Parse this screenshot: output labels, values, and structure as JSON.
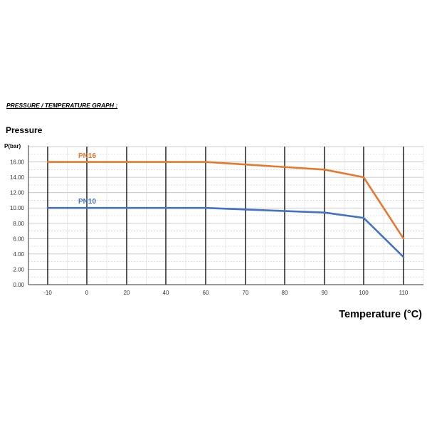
{
  "header": {
    "title": "PRESSURE / TEMPERATURE GRAPH :",
    "subtitle": "Pressure",
    "x_axis_title": "Temperature (°C)"
  },
  "chart_data": {
    "type": "line",
    "ylabel": "P(bar)",
    "xlabel": "Temperature (°C)",
    "xlim": [
      -10,
      110
    ],
    "ylim": [
      0,
      18
    ],
    "x_ticks": [
      -10,
      0,
      20,
      40,
      60,
      70,
      80,
      90,
      100,
      110
    ],
    "y_ticks": [
      "0.00",
      "2.00",
      "4.00",
      "6.00",
      "8.00",
      "10.00",
      "12.00",
      "14.00",
      "16.00"
    ],
    "grid": true,
    "series": [
      {
        "name": "PN16",
        "color": "#E8782E",
        "x": [
          -10,
          60,
          90,
          100,
          110
        ],
        "y": [
          16,
          16,
          15,
          14,
          6
        ]
      },
      {
        "name": "PN10",
        "color": "#4472C4",
        "x": [
          -10,
          60,
          90,
          100,
          110
        ],
        "y": [
          10,
          10,
          9.4,
          8.7,
          3.6
        ]
      }
    ]
  }
}
